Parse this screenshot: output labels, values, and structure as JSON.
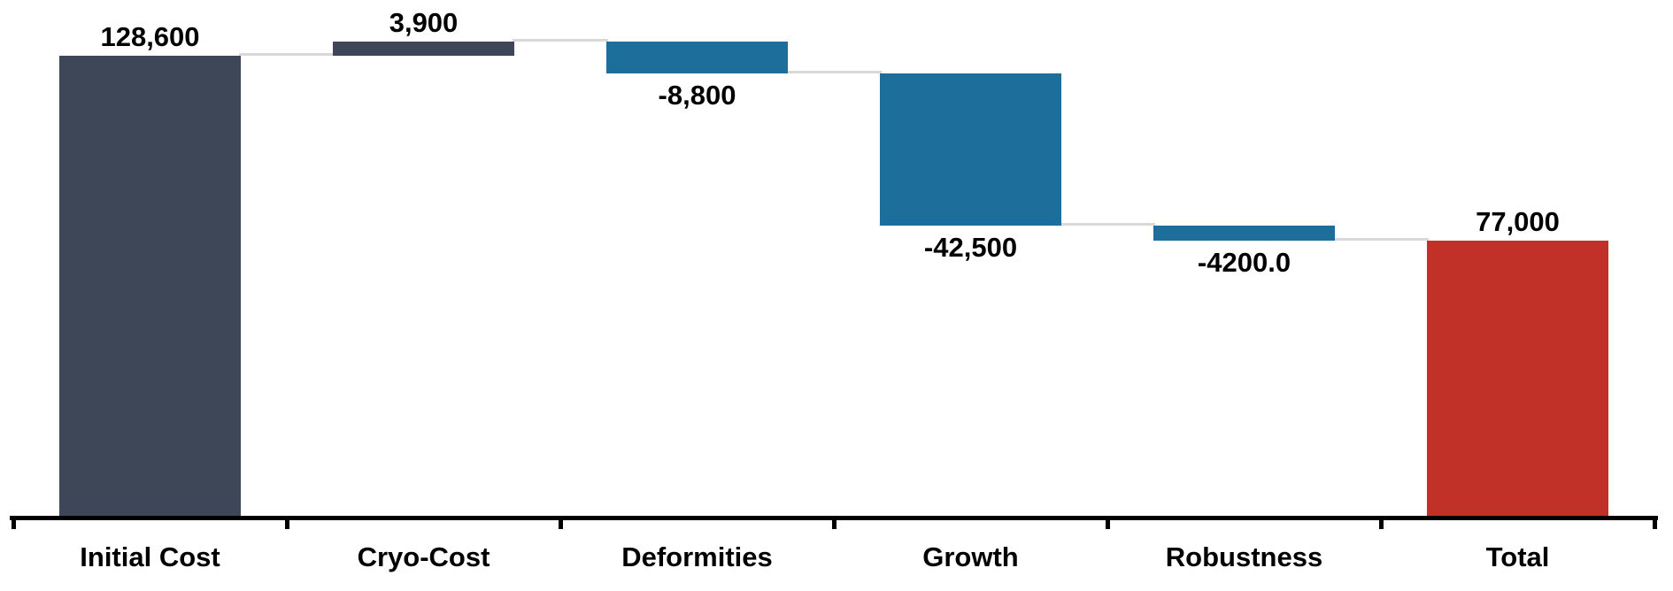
{
  "chart_data": {
    "type": "bar",
    "subtype": "waterfall",
    "title": "",
    "xlabel": "",
    "ylabel": "",
    "grid": false,
    "legend": null,
    "categories": [
      "Initial Cost",
      "Cryo-Cost",
      "Deformities",
      "Growth",
      "Robustness",
      "Total"
    ],
    "values": [
      128600,
      3900,
      -8800,
      -42500,
      -4200,
      77000
    ],
    "value_labels": [
      "128,600",
      "3,900",
      "-8,800",
      "-42,500",
      "-4200.0",
      "77,000"
    ],
    "bar_roles": [
      "increase",
      "increase",
      "decrease",
      "decrease",
      "decrease",
      "total"
    ],
    "cumulative": [
      128600,
      132500,
      123700,
      81200,
      77000,
      77000
    ],
    "label_positions": [
      "above",
      "above",
      "below",
      "below",
      "below",
      "above"
    ],
    "ylim": [
      0,
      140000
    ],
    "colors": {
      "increase_bar": "#3E4757",
      "decrease_bar": "#1E6E9C",
      "total_bar": "#C23128",
      "connector": "#D9D9D9",
      "axis": "#000000",
      "label_text": "#000000",
      "background": "#FFFFFF"
    }
  }
}
